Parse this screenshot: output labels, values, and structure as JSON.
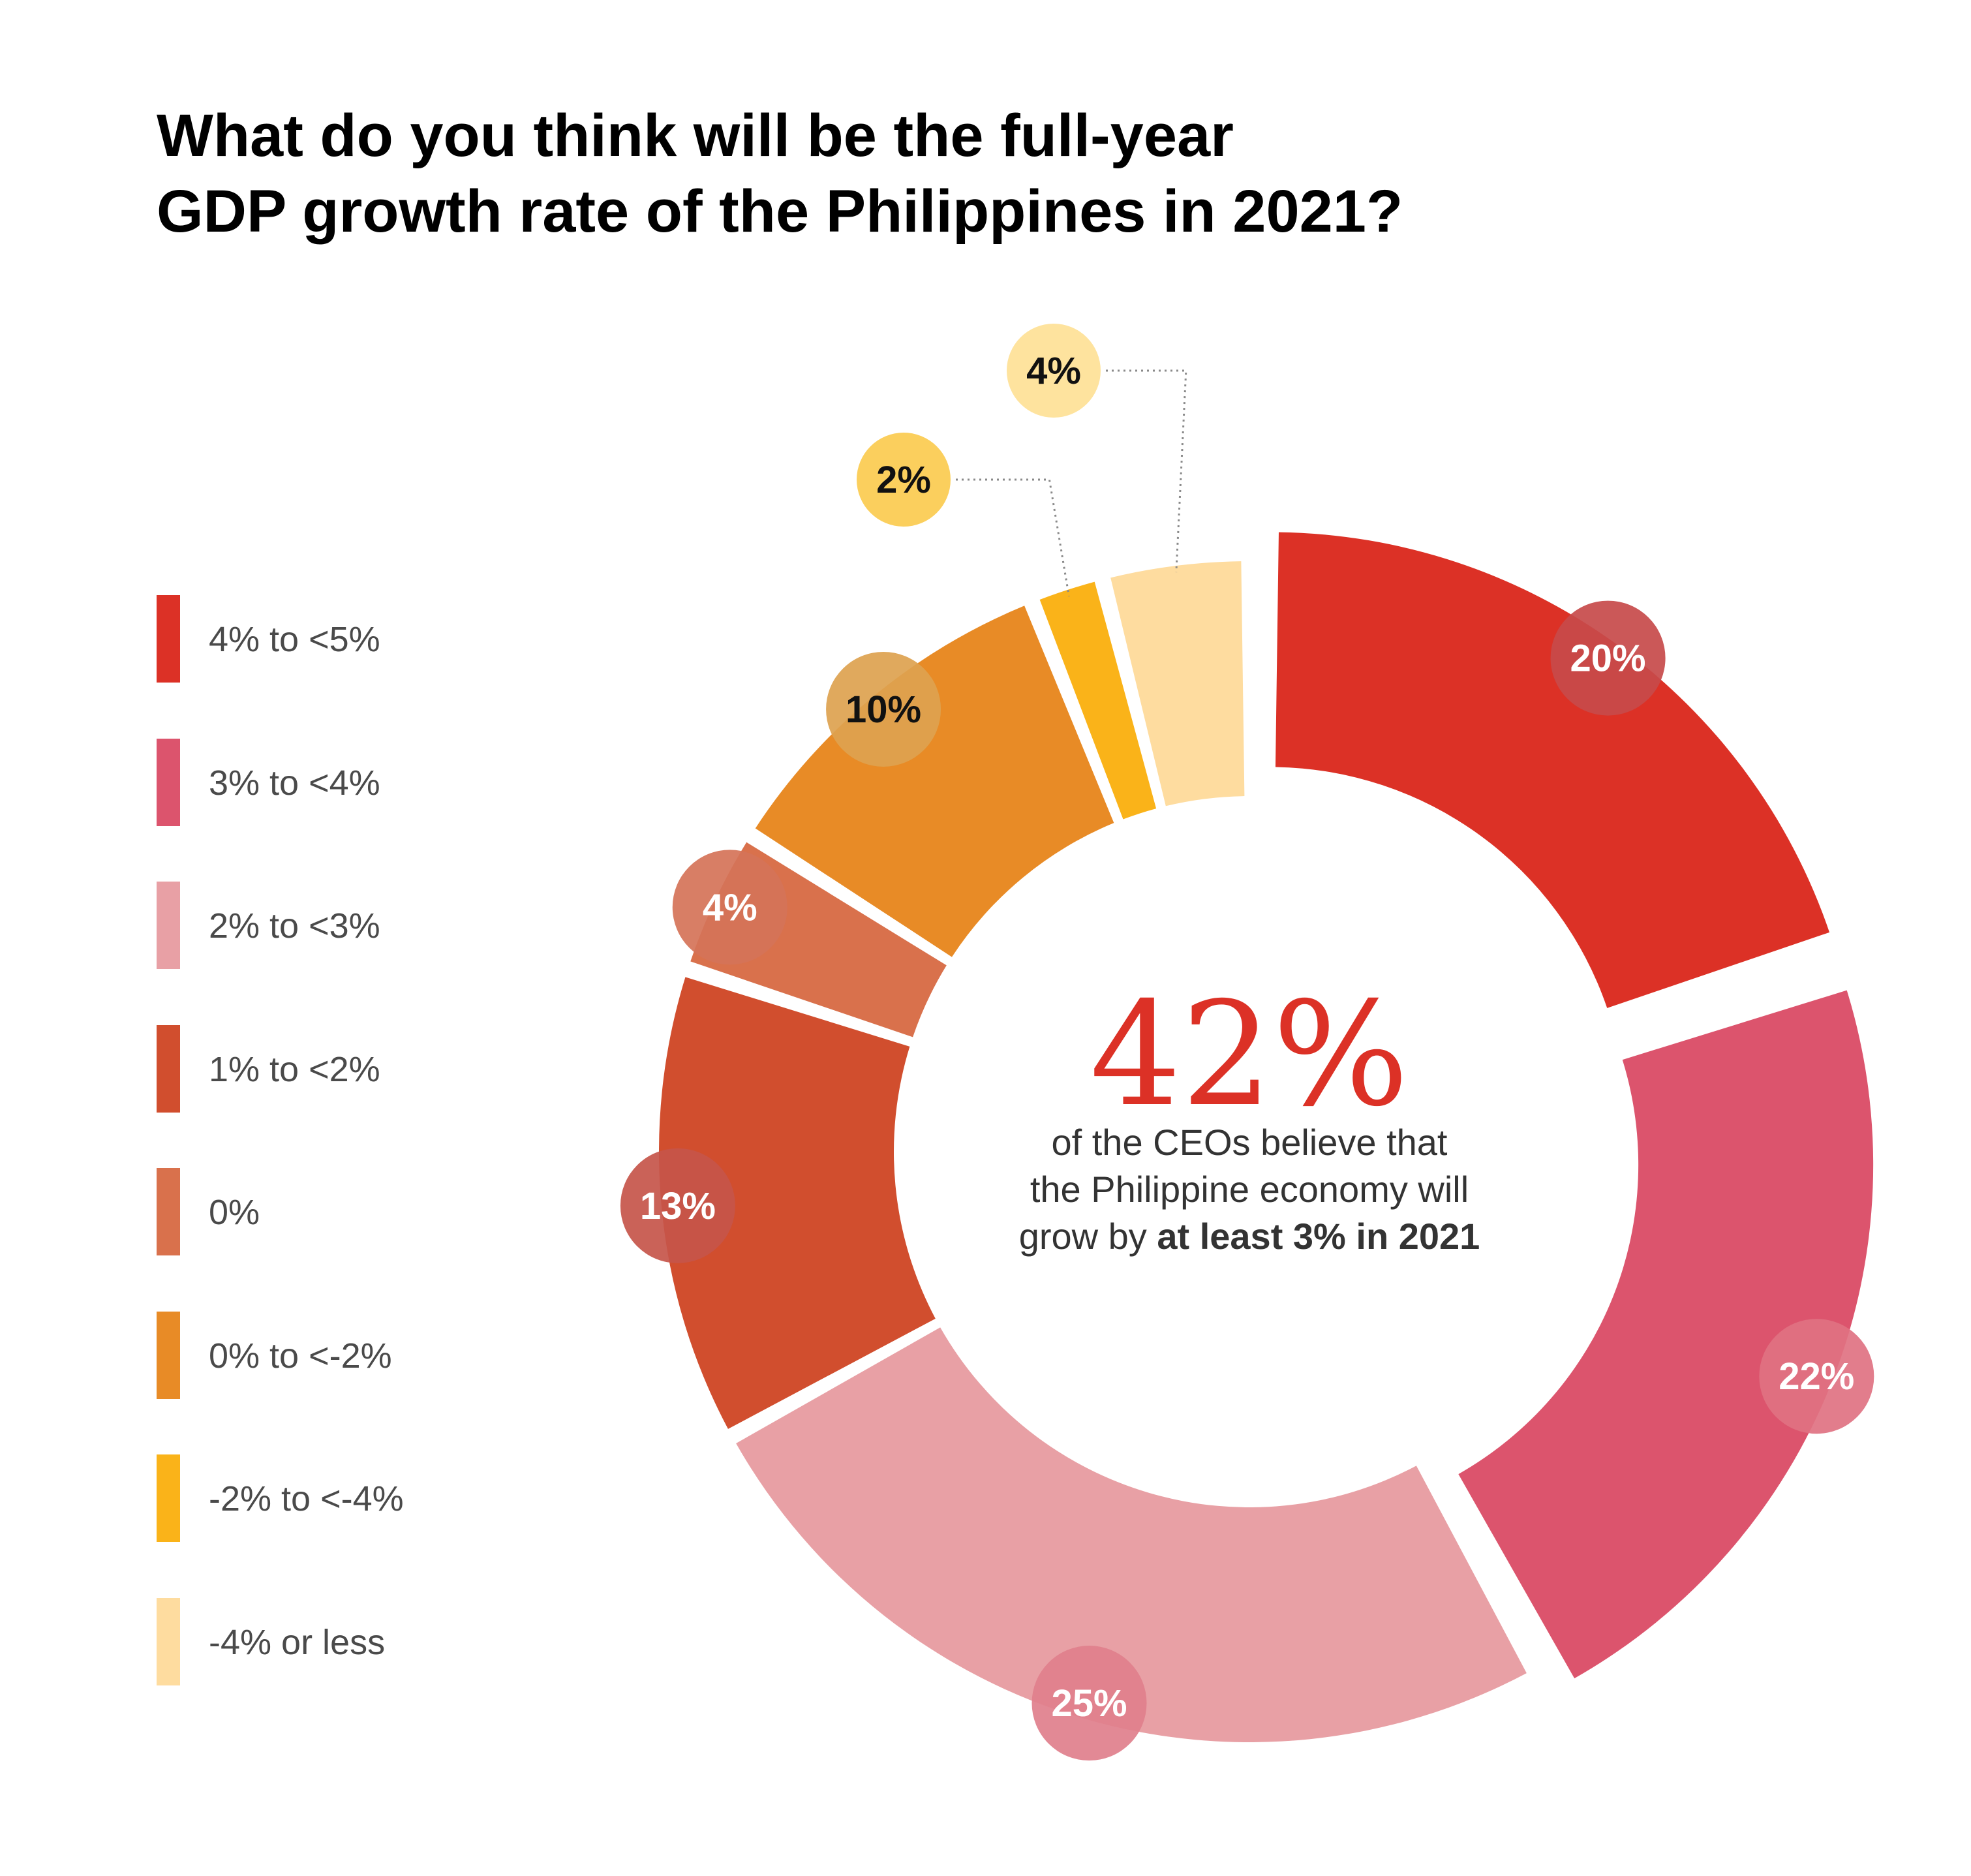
{
  "title": {
    "line1": "What do you think will be the full-year",
    "line2": "GDP growth rate of the Philippines in 2021?"
  },
  "center": {
    "big_value": "42%",
    "line1": "of the CEOs believe that",
    "line2": "the Philippine economy will",
    "line3_regular": "grow by ",
    "line3_bold": "at least 3% in 2021",
    "color": "#dc3126"
  },
  "chart_data": {
    "type": "pie",
    "variant": "donut",
    "start": "12 o'clock, clockwise",
    "exploded_slices": [
      "4% to <5%",
      "3% to <4%"
    ],
    "categories": [
      "4% to <5%",
      "3% to <4%",
      "2% to <3%",
      "1% to <2%",
      "0%",
      "0% to <-2%",
      "-2% to <-4%",
      "-4% or less"
    ],
    "values": [
      20,
      22,
      25,
      13,
      4,
      10,
      2,
      4
    ],
    "labels": [
      "20%",
      "22%",
      "25%",
      "13%",
      "4%",
      "10%",
      "2%",
      "4%"
    ],
    "colors": [
      "#dc3126",
      "#dc546d",
      "#e8a0a5",
      "#d14e2e",
      "#d9714c",
      "#e88b26",
      "#fab319",
      "#fedc9f"
    ],
    "bubble_colors": [
      "#c74a4a",
      "#e07282",
      "#e07f8c",
      "#c5554a",
      "#d57358",
      "#dda24f",
      "#fbcb4f",
      "#fee196"
    ],
    "bubble_text_colors": [
      "#ffffff",
      "#ffffff",
      "#ffffff",
      "#ffffff",
      "#ffffff",
      "#111111",
      "#111111",
      "#111111"
    ],
    "legend": "left"
  }
}
